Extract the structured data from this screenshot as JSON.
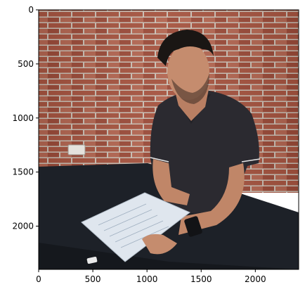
{
  "axes": {
    "x_ticks": [
      0,
      500,
      1000,
      1500,
      2000
    ],
    "y_ticks": [
      0,
      500,
      1000,
      1500,
      2000
    ],
    "x_range": [
      0,
      2400
    ],
    "y_range": [
      2400,
      0
    ]
  },
  "photo": {
    "subject": "young man in black polo shirt reading papers at a table",
    "background": "red brick wall",
    "colors": {
      "brick": "#a5533f",
      "mortar": "#c9bfb4",
      "shirt": "#2b2a30",
      "table": "#1d2128",
      "skin": "#c58c6e",
      "hair": "#1a1614",
      "paper": "#dfe6ee"
    }
  }
}
